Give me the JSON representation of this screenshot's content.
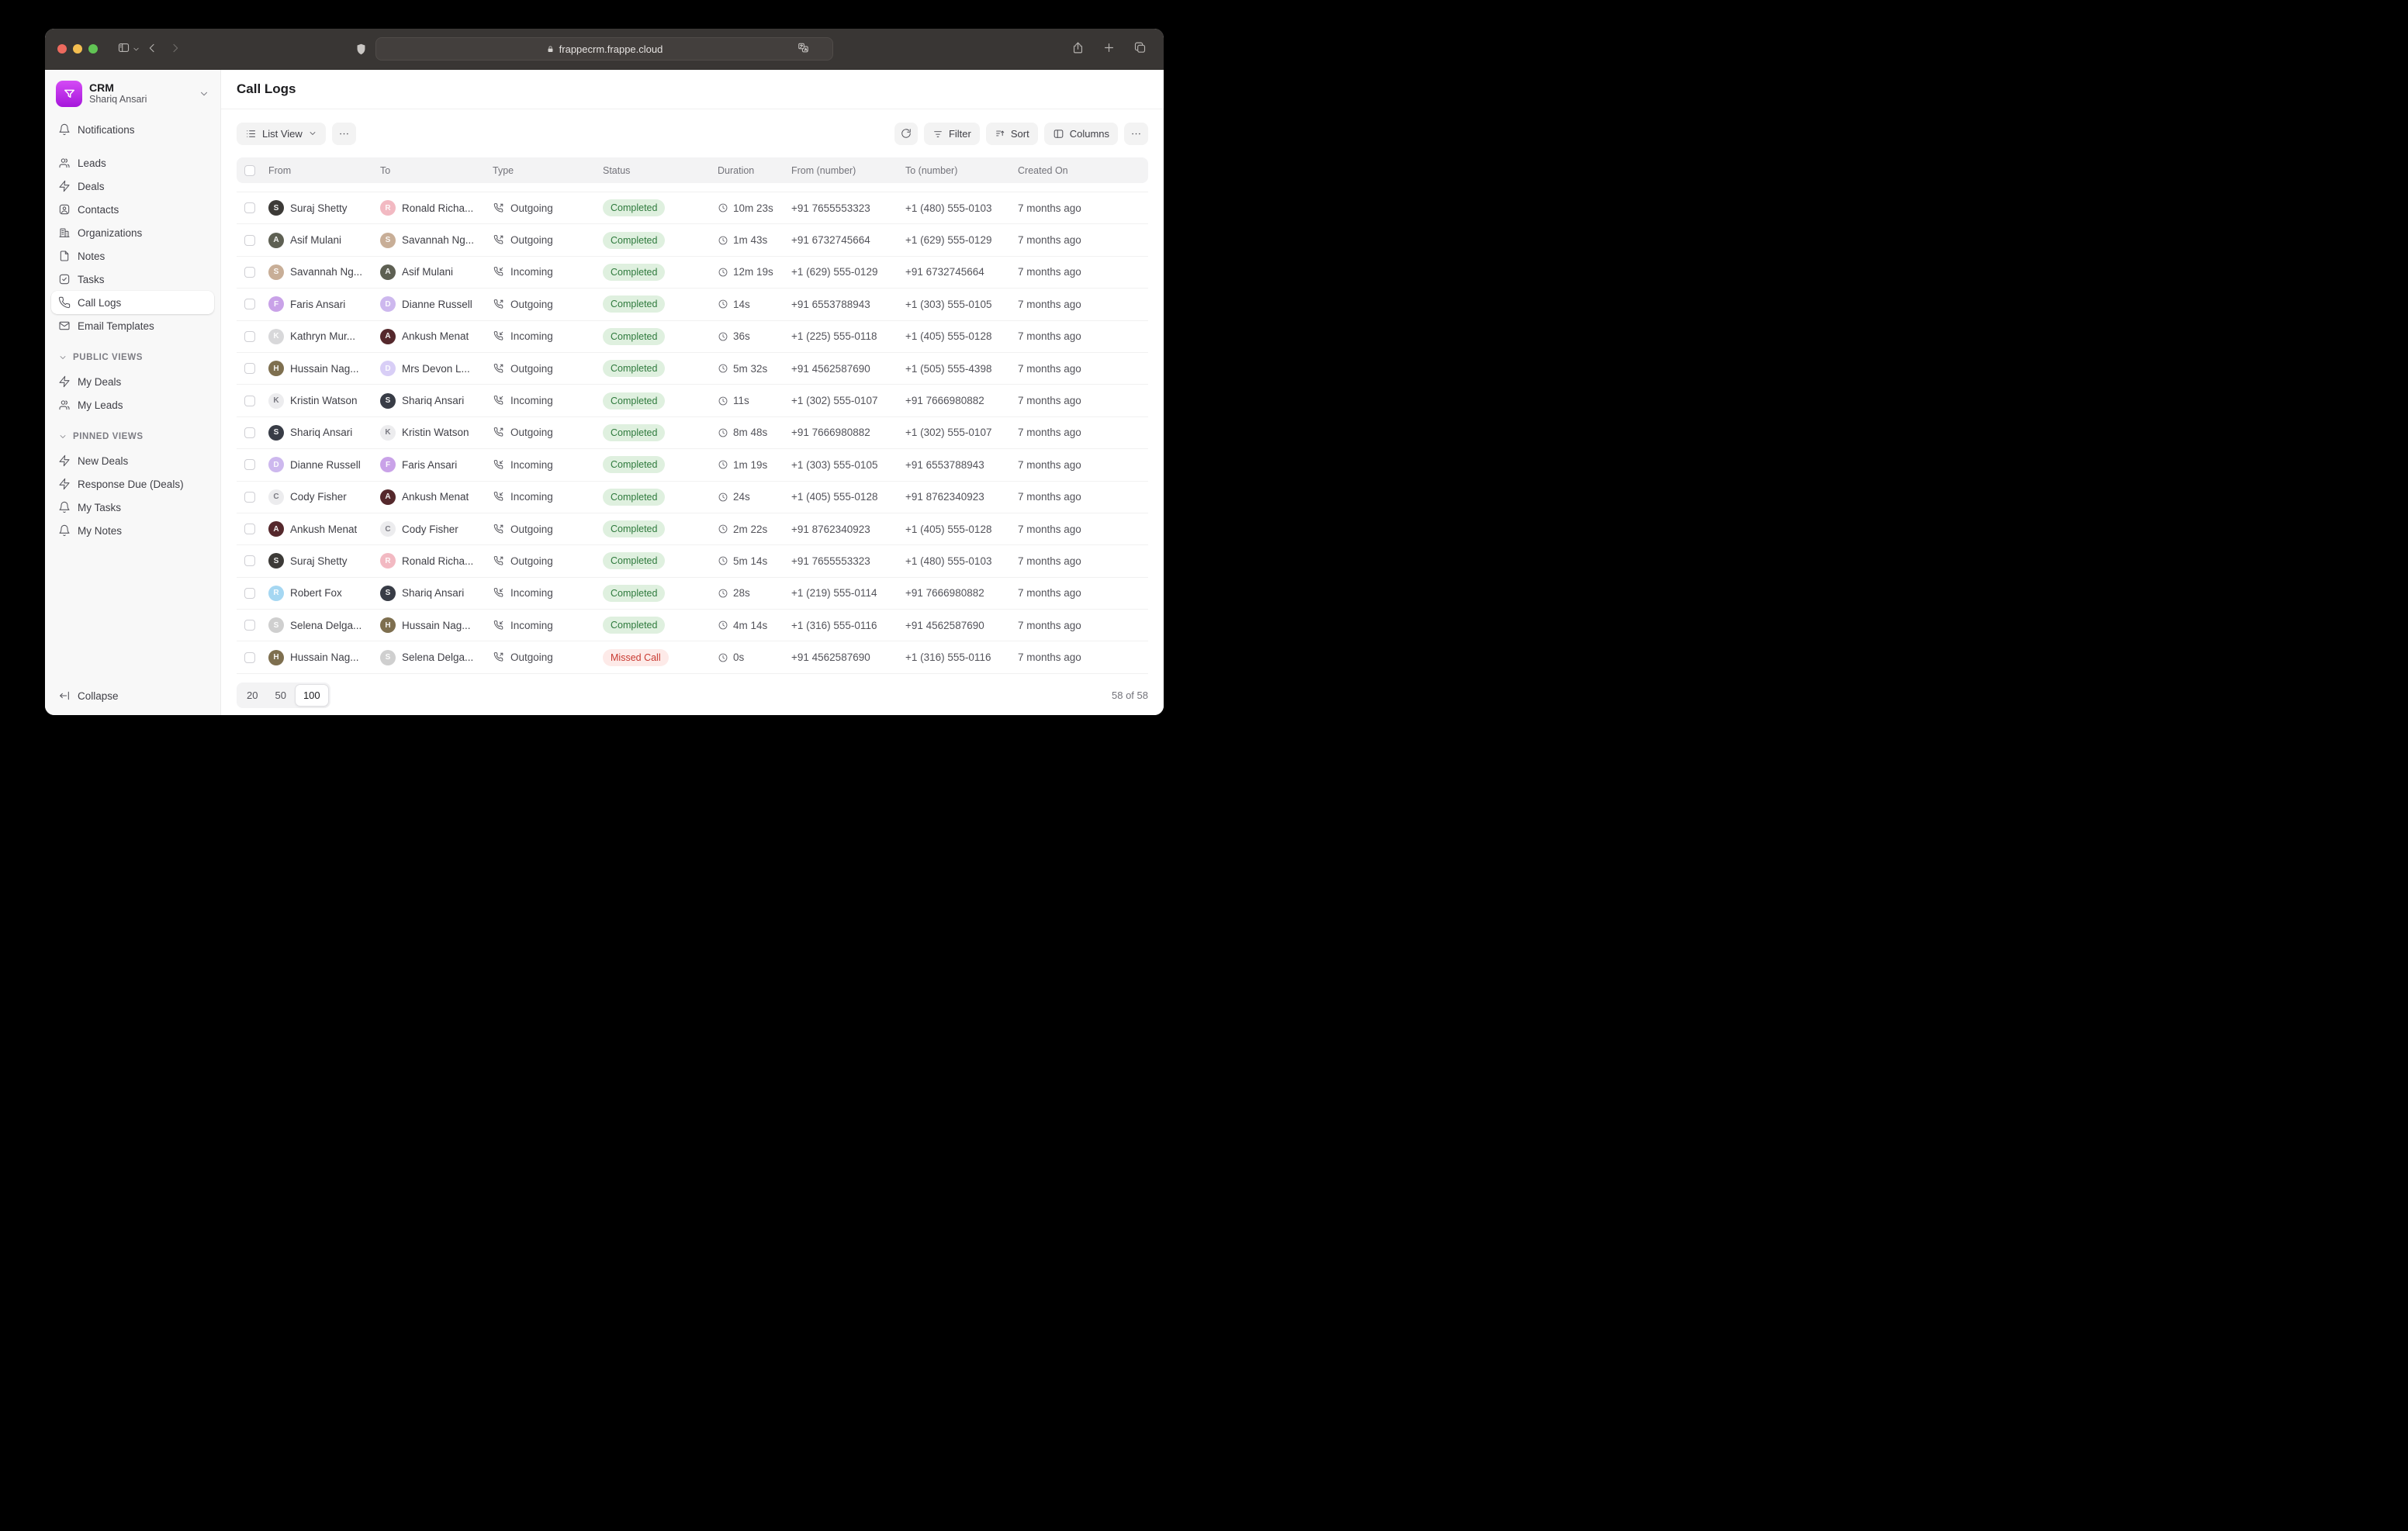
{
  "browser": {
    "url": "frappecrm.frappe.cloud"
  },
  "sidebar": {
    "app": {
      "title": "CRM",
      "user": "Shariq Ansari"
    },
    "nav": [
      {
        "label": "Notifications",
        "icon": "bell",
        "active": false,
        "gap_after": true
      },
      {
        "label": "Leads",
        "icon": "users",
        "active": false
      },
      {
        "label": "Deals",
        "icon": "zap",
        "active": false
      },
      {
        "label": "Contacts",
        "icon": "contact",
        "active": false
      },
      {
        "label": "Organizations",
        "icon": "building",
        "active": false
      },
      {
        "label": "Notes",
        "icon": "file",
        "active": false
      },
      {
        "label": "Tasks",
        "icon": "check-square",
        "active": false
      },
      {
        "label": "Call Logs",
        "icon": "phone",
        "active": true
      },
      {
        "label": "Email Templates",
        "icon": "mail",
        "active": false
      }
    ],
    "sections": [
      {
        "title": "PUBLIC VIEWS",
        "items": [
          {
            "label": "My Deals",
            "icon": "zap"
          },
          {
            "label": "My Leads",
            "icon": "users"
          }
        ]
      },
      {
        "title": "PINNED VIEWS",
        "items": [
          {
            "label": "New Deals",
            "icon": "zap"
          },
          {
            "label": "Response Due (Deals)",
            "icon": "zap"
          },
          {
            "label": "My Tasks",
            "icon": "bell"
          },
          {
            "label": "My Notes",
            "icon": "bell"
          }
        ]
      }
    ],
    "collapse_label": "Collapse"
  },
  "main": {
    "page_title": "Call Logs",
    "toolbar": {
      "view_label": "List View",
      "filter_label": "Filter",
      "sort_label": "Sort",
      "columns_label": "Columns"
    },
    "table": {
      "columns": [
        "From",
        "To",
        "Type",
        "Status",
        "Duration",
        "From (number)",
        "To (number)",
        "Created On"
      ],
      "rows": [
        {
          "from": {
            "name": "Suraj Shetty",
            "avatar": {
              "kind": "photo",
              "color": "#3C3A37",
              "initial": "S"
            }
          },
          "to": {
            "name": "Ronald Richa...",
            "avatar": {
              "kind": "photo",
              "color": "#F2B9C2",
              "initial": "R"
            }
          },
          "type": "Outgoing",
          "status": "Completed",
          "duration": "10m 23s",
          "from_number": "+91 7655553323",
          "to_number": "+1 (480) 555-0103",
          "created": "7 months ago"
        },
        {
          "from": {
            "name": "Asif Mulani",
            "avatar": {
              "kind": "photo",
              "color": "#5E6053",
              "initial": "A"
            }
          },
          "to": {
            "name": "Savannah Ng...",
            "avatar": {
              "kind": "photo",
              "color": "#C8AE97",
              "initial": "S"
            }
          },
          "type": "Outgoing",
          "status": "Completed",
          "duration": "1m 43s",
          "from_number": "+91 6732745664",
          "to_number": "+1 (629) 555-0129",
          "created": "7 months ago"
        },
        {
          "from": {
            "name": "Savannah Ng...",
            "avatar": {
              "kind": "photo",
              "color": "#C8AE97",
              "initial": "S"
            }
          },
          "to": {
            "name": "Asif Mulani",
            "avatar": {
              "kind": "photo",
              "color": "#5E6053",
              "initial": "A"
            }
          },
          "type": "Incoming",
          "status": "Completed",
          "duration": "12m 19s",
          "from_number": "+1 (629) 555-0129",
          "to_number": "+91 6732745664",
          "created": "7 months ago"
        },
        {
          "from": {
            "name": "Faris Ansari",
            "avatar": {
              "kind": "photo",
              "color": "#C9A2E8",
              "initial": "F"
            }
          },
          "to": {
            "name": "Dianne Russell",
            "avatar": {
              "kind": "photo",
              "color": "#CDB8EE",
              "initial": "D"
            }
          },
          "type": "Outgoing",
          "status": "Completed",
          "duration": "14s",
          "from_number": "+91 6553788943",
          "to_number": "+1 (303) 555-0105",
          "created": "7 months ago"
        },
        {
          "from": {
            "name": "Kathryn Mur...",
            "avatar": {
              "kind": "photo",
              "color": "#D8D8DA",
              "initial": "K"
            }
          },
          "to": {
            "name": "Ankush Menat",
            "avatar": {
              "kind": "photo",
              "color": "#55282C",
              "initial": "A"
            }
          },
          "type": "Incoming",
          "status": "Completed",
          "duration": "36s",
          "from_number": "+1 (225) 555-0118",
          "to_number": "+1 (405) 555-0128",
          "created": "7 months ago"
        },
        {
          "from": {
            "name": "Hussain Nag...",
            "avatar": {
              "kind": "photo",
              "color": "#7E6F4F",
              "initial": "H"
            }
          },
          "to": {
            "name": "Mrs Devon L...",
            "avatar": {
              "kind": "photo",
              "color": "#D8CEF6",
              "initial": "D"
            }
          },
          "type": "Outgoing",
          "status": "Completed",
          "duration": "5m 32s",
          "from_number": "+91 4562587690",
          "to_number": "+1 (505) 555-4398",
          "created": "7 months ago"
        },
        {
          "from": {
            "name": "Kristin Watson",
            "avatar": {
              "kind": "letter",
              "color": "#ECECEE",
              "initial": "K"
            }
          },
          "to": {
            "name": "Shariq Ansari",
            "avatar": {
              "kind": "photo",
              "color": "#383C46",
              "initial": "S"
            }
          },
          "type": "Incoming",
          "status": "Completed",
          "duration": "11s",
          "from_number": "+1 (302) 555-0107",
          "to_number": "+91 7666980882",
          "created": "7 months ago"
        },
        {
          "from": {
            "name": "Shariq Ansari",
            "avatar": {
              "kind": "photo",
              "color": "#383C46",
              "initial": "S"
            }
          },
          "to": {
            "name": "Kristin Watson",
            "avatar": {
              "kind": "letter",
              "color": "#ECECEE",
              "initial": "K"
            }
          },
          "type": "Outgoing",
          "status": "Completed",
          "duration": "8m 48s",
          "from_number": "+91 7666980882",
          "to_number": "+1 (302) 555-0107",
          "created": "7 months ago"
        },
        {
          "from": {
            "name": "Dianne Russell",
            "avatar": {
              "kind": "photo",
              "color": "#CDB8EE",
              "initial": "D"
            }
          },
          "to": {
            "name": "Faris Ansari",
            "avatar": {
              "kind": "photo",
              "color": "#C9A2E8",
              "initial": "F"
            }
          },
          "type": "Incoming",
          "status": "Completed",
          "duration": "1m 19s",
          "from_number": "+1 (303) 555-0105",
          "to_number": "+91 6553788943",
          "created": "7 months ago"
        },
        {
          "from": {
            "name": "Cody Fisher",
            "avatar": {
              "kind": "letter",
              "color": "#ECECEE",
              "initial": "C"
            }
          },
          "to": {
            "name": "Ankush Menat",
            "avatar": {
              "kind": "photo",
              "color": "#55282C",
              "initial": "A"
            }
          },
          "type": "Incoming",
          "status": "Completed",
          "duration": "24s",
          "from_number": "+1 (405) 555-0128",
          "to_number": "+91 8762340923",
          "created": "7 months ago"
        },
        {
          "from": {
            "name": "Ankush Menat",
            "avatar": {
              "kind": "photo",
              "color": "#55282C",
              "initial": "A"
            }
          },
          "to": {
            "name": "Cody Fisher",
            "avatar": {
              "kind": "letter",
              "color": "#ECECEE",
              "initial": "C"
            }
          },
          "type": "Outgoing",
          "status": "Completed",
          "duration": "2m 22s",
          "from_number": "+91 8762340923",
          "to_number": "+1 (405) 555-0128",
          "created": "7 months ago"
        },
        {
          "from": {
            "name": "Suraj Shetty",
            "avatar": {
              "kind": "photo",
              "color": "#3C3A37",
              "initial": "S"
            }
          },
          "to": {
            "name": "Ronald Richa...",
            "avatar": {
              "kind": "photo",
              "color": "#F2B9C2",
              "initial": "R"
            }
          },
          "type": "Outgoing",
          "status": "Completed",
          "duration": "5m 14s",
          "from_number": "+91 7655553323",
          "to_number": "+1 (480) 555-0103",
          "created": "7 months ago"
        },
        {
          "from": {
            "name": "Robert Fox",
            "avatar": {
              "kind": "photo",
              "color": "#A5D7F2",
              "initial": "R"
            }
          },
          "to": {
            "name": "Shariq Ansari",
            "avatar": {
              "kind": "photo",
              "color": "#383C46",
              "initial": "S"
            }
          },
          "type": "Incoming",
          "status": "Completed",
          "duration": "28s",
          "from_number": "+1 (219) 555-0114",
          "to_number": "+91 7666980882",
          "created": "7 months ago"
        },
        {
          "from": {
            "name": "Selena Delga...",
            "avatar": {
              "kind": "photo",
              "color": "#CFCFCF",
              "initial": "S"
            }
          },
          "to": {
            "name": "Hussain Nag...",
            "avatar": {
              "kind": "photo",
              "color": "#7E6F4F",
              "initial": "H"
            }
          },
          "type": "Incoming",
          "status": "Completed",
          "duration": "4m 14s",
          "from_number": "+1 (316) 555-0116",
          "to_number": "+91 4562587690",
          "created": "7 months ago"
        },
        {
          "from": {
            "name": "Hussain Nag...",
            "avatar": {
              "kind": "photo",
              "color": "#7E6F4F",
              "initial": "H"
            }
          },
          "to": {
            "name": "Selena Delga...",
            "avatar": {
              "kind": "photo",
              "color": "#CFCFCF",
              "initial": "S"
            }
          },
          "type": "Outgoing",
          "status": "Missed Call",
          "duration": "0s",
          "from_number": "+91 4562587690",
          "to_number": "+1 (316) 555-0116",
          "created": "7 months ago"
        }
      ]
    },
    "pagination": {
      "sizes": [
        "20",
        "50",
        "100"
      ],
      "active_size": "100",
      "count": "58 of 58"
    }
  },
  "status_colors": {
    "Completed": "#2F7A3D",
    "Missed Call": "#C93A31"
  }
}
